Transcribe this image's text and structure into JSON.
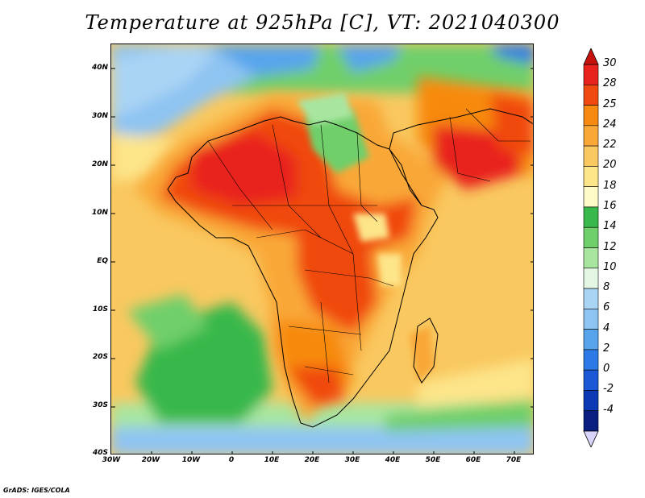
{
  "title": "Temperature at 925hPa [C], VT: 2021040300",
  "credit": "GrADS: IGES/COLA",
  "map": {
    "lat_labels": [
      "40N",
      "30N",
      "20N",
      "10N",
      "EQ",
      "10S",
      "20S",
      "30S",
      "40S"
    ],
    "lon_labels": [
      "30W",
      "20W",
      "10W",
      "0",
      "10E",
      "20E",
      "30E",
      "40E",
      "50E",
      "60E",
      "70E"
    ],
    "lat_range": [
      -40,
      45
    ],
    "lon_range": [
      -30,
      75
    ],
    "variable": "Temperature",
    "level": "925hPa",
    "units": "C",
    "valid_time": "2021040300"
  },
  "colorbar": {
    "labels": [
      "30",
      "28",
      "25",
      "24",
      "22",
      "20",
      "18",
      "16",
      "14",
      "12",
      "10",
      "8",
      "6",
      "4",
      "2",
      "0",
      "-2",
      "-4"
    ],
    "colors": [
      "#e8221c",
      "#f04a10",
      "#f78a10",
      "#f9a838",
      "#f9c860",
      "#fde58a",
      "#fefac8",
      "#39b84c",
      "#6fcf6a",
      "#a8e6a0",
      "#e4f7e4",
      "#aad4f4",
      "#8ec4f2",
      "#58a4ec",
      "#2c7ae6",
      "#1a58d6",
      "#0c3ab4",
      "#0a1e80"
    ],
    "top_color": "#c8120e",
    "bottom_color": "#d8d4f8"
  }
}
